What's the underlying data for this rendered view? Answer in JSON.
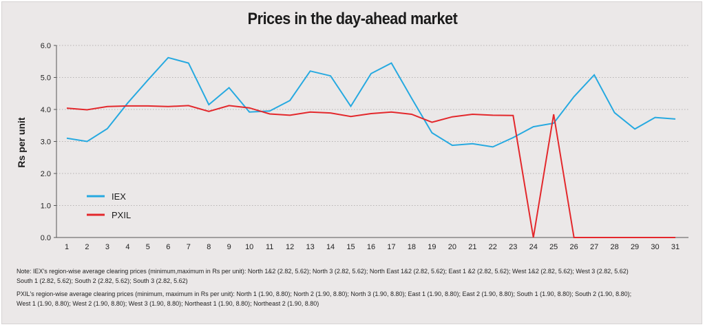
{
  "chart_data": {
    "type": "line",
    "title": "Prices in the day-ahead market",
    "xlabel": "",
    "ylabel": "Rs per unit",
    "ylim": [
      0,
      6
    ],
    "yticks": [
      "0.0",
      "1.0",
      "2.0",
      "3.0",
      "4.0",
      "5.0",
      "6.0"
    ],
    "categories": [
      "1",
      "2",
      "3",
      "4",
      "5",
      "6",
      "7",
      "8",
      "9",
      "10",
      "11",
      "12",
      "13",
      "14",
      "15",
      "16",
      "17",
      "18",
      "19",
      "20",
      "21",
      "22",
      "23",
      "24",
      "25",
      "26",
      "27",
      "28",
      "29",
      "30",
      "31"
    ],
    "series": [
      {
        "name": "IEX",
        "color": "#26a9e0",
        "values": [
          3.1,
          3.0,
          3.4,
          4.2,
          4.92,
          5.62,
          5.45,
          4.15,
          4.68,
          3.92,
          3.95,
          4.28,
          5.2,
          5.05,
          4.1,
          5.12,
          5.45,
          4.35,
          3.27,
          2.88,
          2.93,
          2.83,
          3.12,
          3.46,
          3.57,
          4.4,
          5.08,
          3.9,
          3.39,
          3.75,
          3.7
        ]
      },
      {
        "name": "PXIL",
        "color": "#e3272b",
        "values": [
          4.04,
          3.99,
          4.09,
          4.11,
          4.11,
          4.09,
          4.12,
          3.94,
          4.12,
          4.05,
          3.86,
          3.82,
          3.92,
          3.89,
          3.78,
          3.87,
          3.92,
          3.85,
          3.6,
          3.77,
          3.85,
          3.82,
          3.81,
          0.0,
          3.85,
          0.0,
          0.0,
          0.0,
          0.0,
          0.0,
          0.0
        ]
      }
    ],
    "legend_position": "lower-left",
    "grid": "horizontal dotted"
  },
  "notes": {
    "iex_line1": "Note: IEX's region-wise average clearing prices (minimum,maximum in Rs per unit):  North 1&2 (2.82, 5.62); North 3 (2.82, 5.62); North East 1&2 (2.82, 5.62); East 1 &2 (2.82, 5.62); West 1&2 (2.82, 5.62); West 3 (2.82, 5.62)",
    "iex_line2": "South 1 (2.82, 5.62); South 2 (2.82, 5.62); South 3 (2.82, 5.62)",
    "pxil_line1": "PXIL's region-wise average clearing prices (minimum, maximum in Rs per unit):  North 1 (1.90, 8.80); North 2 (1.90, 8.80); North 3 (1.90, 8.80); East 1 (1.90, 8.80); East 2 (1.90, 8.80); South 1 (1.90, 8.80); South 2 (1.90, 8.80);",
    "pxil_line2": "West 1 (1.90, 8.80); West 2 (1.90, 8.80); West 3 (1.90, 8.80); Northeast 1 (1.90, 8.80); Northeast 2 (1.90, 8.80)"
  }
}
